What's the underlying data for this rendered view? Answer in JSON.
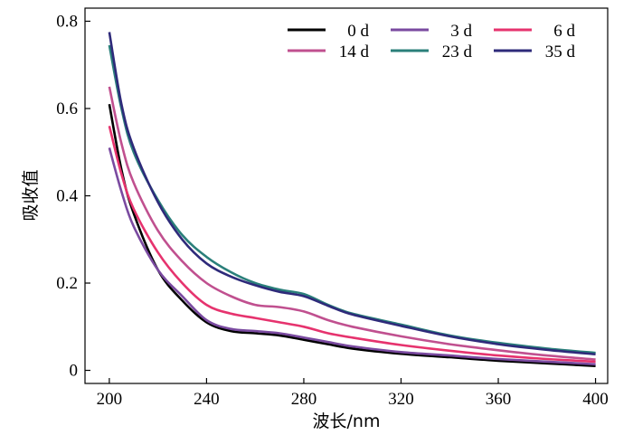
{
  "chart_data": {
    "type": "line",
    "xlabel": "波长/nm",
    "ylabel": "吸收值",
    "xlim": [
      190,
      405
    ],
    "ylim": [
      -0.03,
      0.83
    ],
    "xticks": [
      200,
      240,
      280,
      320,
      360,
      400
    ],
    "yticks": [
      0,
      0.2,
      0.4,
      0.6,
      0.8
    ],
    "xtick_labels": [
      "200",
      "240",
      "280",
      "320",
      "360",
      "400"
    ],
    "ytick_labels": [
      "0",
      "0.2",
      "0.4",
      "0.6",
      "0.8"
    ],
    "grid": false,
    "legend": {
      "placement": "top-right",
      "columns": 3
    },
    "series": [
      {
        "name": "0 d",
        "color": "#000000",
        "x": [
          200,
          205,
          210,
          220,
          230,
          240,
          250,
          260,
          270,
          280,
          290,
          300,
          320,
          340,
          360,
          380,
          400
        ],
        "y": [
          0.61,
          0.46,
          0.36,
          0.23,
          0.16,
          0.11,
          0.09,
          0.085,
          0.08,
          0.07,
          0.06,
          0.05,
          0.038,
          0.03,
          0.022,
          0.016,
          0.01
        ]
      },
      {
        "name": "3 d",
        "color": "#7a4aa0",
        "x": [
          200,
          205,
          210,
          220,
          230,
          240,
          250,
          260,
          270,
          280,
          290,
          300,
          320,
          340,
          360,
          380,
          400
        ],
        "y": [
          0.51,
          0.41,
          0.33,
          0.23,
          0.17,
          0.115,
          0.095,
          0.09,
          0.085,
          0.075,
          0.065,
          0.055,
          0.042,
          0.034,
          0.026,
          0.02,
          0.014
        ]
      },
      {
        "name": "6 d",
        "color": "#e6336e",
        "x": [
          200,
          205,
          210,
          220,
          230,
          240,
          250,
          260,
          270,
          280,
          290,
          300,
          320,
          340,
          360,
          380,
          400
        ],
        "y": [
          0.56,
          0.45,
          0.37,
          0.27,
          0.2,
          0.15,
          0.13,
          0.12,
          0.11,
          0.1,
          0.085,
          0.075,
          0.058,
          0.045,
          0.034,
          0.026,
          0.02
        ]
      },
      {
        "name": "14 d",
        "color": "#c0508f",
        "x": [
          200,
          205,
          210,
          220,
          230,
          240,
          250,
          260,
          270,
          280,
          290,
          300,
          320,
          340,
          360,
          380,
          400
        ],
        "y": [
          0.65,
          0.52,
          0.43,
          0.32,
          0.25,
          0.2,
          0.17,
          0.15,
          0.145,
          0.135,
          0.115,
          0.1,
          0.078,
          0.06,
          0.046,
          0.034,
          0.025
        ]
      },
      {
        "name": "23 d",
        "color": "#2a7f7a",
        "x": [
          200,
          205,
          210,
          220,
          230,
          240,
          250,
          260,
          270,
          280,
          290,
          300,
          320,
          340,
          360,
          380,
          400
        ],
        "y": [
          0.745,
          0.6,
          0.5,
          0.39,
          0.31,
          0.26,
          0.225,
          0.2,
          0.185,
          0.175,
          0.15,
          0.13,
          0.105,
          0.08,
          0.063,
          0.05,
          0.04
        ]
      },
      {
        "name": "35 d",
        "color": "#2e2a7a",
        "x": [
          200,
          205,
          210,
          220,
          230,
          240,
          250,
          260,
          270,
          280,
          290,
          300,
          320,
          340,
          360,
          380,
          400
        ],
        "y": [
          0.775,
          0.61,
          0.51,
          0.385,
          0.3,
          0.245,
          0.215,
          0.195,
          0.18,
          0.17,
          0.148,
          0.128,
          0.102,
          0.078,
          0.06,
          0.047,
          0.037
        ]
      }
    ]
  }
}
